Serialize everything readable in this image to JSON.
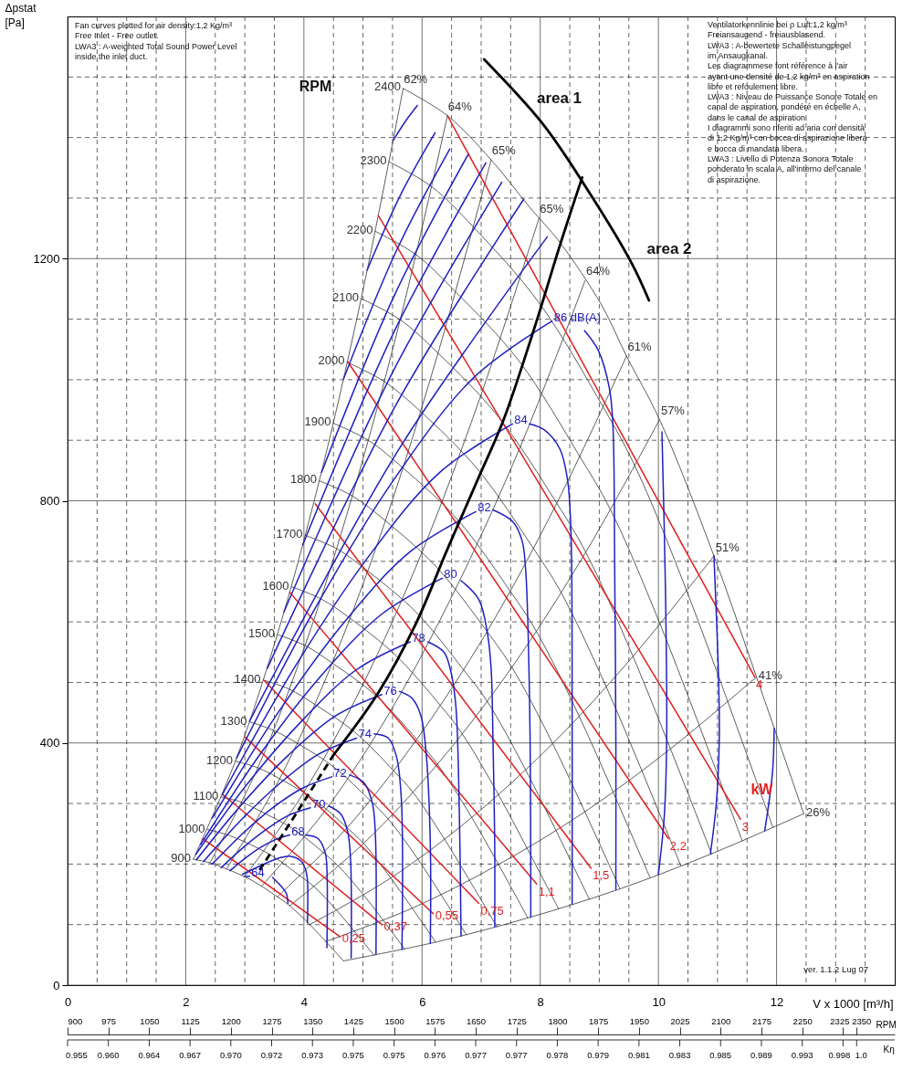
{
  "chart_data": {
    "type": "line",
    "xlim": [
      0,
      14
    ],
    "ylim": [
      0,
      1600
    ],
    "xticks": [
      0,
      {
        "value": 0.5,
        "label": null
      },
      {
        "value": 1,
        "label": null
      },
      {
        "value": 1.5,
        "label": null
      },
      2,
      {
        "value": 2.5,
        "label": null
      },
      {
        "value": 3,
        "label": null
      },
      {
        "value": 3.5,
        "label": null
      },
      4,
      {
        "value": 4.5,
        "label": null
      },
      {
        "value": 5,
        "label": null
      },
      {
        "value": 5.5,
        "label": null
      },
      6,
      {
        "value": 6.5,
        "label": null
      },
      {
        "value": 7,
        "label": null
      },
      {
        "value": 7.5,
        "label": null
      },
      8,
      {
        "value": 8.5,
        "label": null
      },
      {
        "value": 9,
        "label": null
      },
      {
        "value": 9.5,
        "label": null
      },
      10,
      {
        "value": 10.5,
        "label": null
      },
      {
        "value": 11,
        "label": null
      },
      {
        "value": 11.5,
        "label": null
      },
      12,
      {
        "value": 12.5,
        "label": null
      },
      {
        "value": 13,
        "label": null
      },
      {
        "value": 13.5,
        "label": null
      }
    ],
    "yticks": [
      0,
      {
        "value": 100,
        "label": null
      },
      {
        "value": 200,
        "label": null
      },
      {
        "value": 300,
        "label": null
      },
      400,
      {
        "value": 500,
        "label": null
      },
      {
        "value": 600,
        "label": null
      },
      {
        "value": 700,
        "label": null
      },
      800,
      {
        "value": 900,
        "label": null
      },
      {
        "value": 1000,
        "label": null
      },
      {
        "value": 1100,
        "label": null
      },
      1200,
      {
        "value": 1300,
        "label": null
      },
      {
        "value": 1400,
        "label": null
      },
      {
        "value": 1500,
        "label": null
      }
    ],
    "xlabel": "V x 1000 [m³/h]",
    "ylabel": "Δpstat\n[Pa]",
    "x2lim": [
      900,
      2420
    ],
    "x2ticks": [
      900,
      975,
      1050,
      1125,
      1200,
      1275,
      1350,
      1425,
      1500,
      1575,
      1650,
      1725,
      1800,
      1875,
      1950,
      2025,
      2100,
      2175,
      2250,
      2325,
      2350
    ],
    "x2label": "RPM",
    "grid": true,
    "series": [
      {
        "name": "900",
        "color": "#333333",
        "x": [
          4.67,
          4.1,
          3.76,
          3.55,
          3.12,
          2.69,
          2.41,
          2.13
        ],
        "values": [
          40,
          100,
          131,
          146,
          173,
          192,
          202,
          208
        ]
      },
      {
        "name": "1000",
        "color": "#333333",
        "x": [
          5.19,
          4.56,
          4.18,
          3.94,
          3.47,
          2.99,
          2.68,
          2.37
        ],
        "values": [
          49,
          123,
          162,
          180,
          213,
          237,
          249,
          257
        ]
      },
      {
        "name": "1100",
        "color": "#333333",
        "x": [
          5.71,
          5.01,
          4.59,
          4.34,
          3.82,
          3.29,
          2.95,
          2.6
        ],
        "values": [
          59,
          149,
          196,
          218,
          258,
          286,
          302,
          311
        ]
      },
      {
        "name": "1200",
        "color": "#333333",
        "x": [
          6.23,
          5.47,
          5.01,
          4.73,
          4.17,
          3.59,
          3.22,
          2.84
        ],
        "values": [
          71,
          177,
          234,
          260,
          307,
          341,
          359,
          370
        ]
      },
      {
        "name": "1300",
        "color": "#333333",
        "x": [
          6.75,
          5.93,
          5.43,
          5.12,
          4.51,
          3.88,
          3.48,
          3.08
        ],
        "values": [
          83,
          208,
          274,
          305,
          360,
          400,
          421,
          435
        ]
      },
      {
        "name": "1400",
        "color": "#333333",
        "x": [
          7.27,
          6.38,
          5.85,
          5.52,
          4.86,
          4.18,
          3.75,
          3.31
        ],
        "values": [
          96,
          241,
          318,
          354,
          418,
          464,
          489,
          504
        ]
      },
      {
        "name": "1500",
        "color": "#333333",
        "x": [
          7.79,
          6.84,
          6.26,
          5.91,
          5.21,
          4.48,
          4.02,
          3.55
        ],
        "values": [
          111,
          277,
          365,
          406,
          479,
          532,
          561,
          579
        ]
      },
      {
        "name": "1600",
        "color": "#333333",
        "x": [
          8.31,
          7.29,
          6.68,
          6.31,
          5.55,
          4.78,
          4.29,
          3.79
        ],
        "values": [
          126,
          315,
          415,
          462,
          545,
          606,
          638,
          658
        ]
      },
      {
        "name": "1700",
        "color": "#333333",
        "x": [
          8.83,
          7.75,
          7.1,
          6.7,
          5.9,
          5.08,
          4.55,
          4.02
        ],
        "values": [
          142,
          356,
          469,
          521,
          616,
          684,
          721,
          743
        ]
      },
      {
        "name": "1800",
        "color": "#333333",
        "x": [
          9.35,
          8.21,
          7.52,
          7.1,
          6.25,
          5.38,
          4.82,
          4.26
        ],
        "values": [
          159,
          399,
          525,
          584,
          690,
          767,
          808,
          833
        ]
      },
      {
        "name": "1900",
        "color": "#333333",
        "x": [
          9.86,
          8.66,
          7.93,
          7.49,
          6.6,
          5.68,
          5.09,
          4.5
        ],
        "values": [
          177,
          444,
          585,
          651,
          769,
          854,
          900,
          928
        ]
      },
      {
        "name": "2000",
        "color": "#333333",
        "x": [
          10.38,
          9.12,
          8.35,
          7.88,
          6.94,
          5.98,
          5.36,
          4.73
        ],
        "values": [
          197,
          492,
          649,
          722,
          852,
          947,
          997,
          1029
        ]
      },
      {
        "name": "2100",
        "color": "#333333",
        "x": [
          10.9,
          9.57,
          8.77,
          8.28,
          7.29,
          6.27,
          5.63,
          4.97
        ],
        "values": [
          217,
          543,
          715,
          796,
          939,
          1044,
          1099,
          1134
        ]
      },
      {
        "name": "2200",
        "color": "#333333",
        "x": [
          11.42,
          10.03,
          9.19,
          8.67,
          7.64,
          6.57,
          5.89,
          5.21
        ],
        "values": [
          238,
          596,
          785,
          873,
          1031,
          1145,
          1207,
          1245
        ]
      },
      {
        "name": "2300",
        "color": "#333333",
        "x": [
          11.94,
          10.48,
          9.6,
          9.07,
          7.98,
          6.87,
          6.16,
          5.44
        ],
        "values": [
          260,
          651,
          858,
          954,
          1127,
          1252,
          1319,
          1360
        ]
      },
      {
        "name": "2400",
        "color": "#333333",
        "x": [
          12.46,
          11.66,
          10.94,
          10.02,
          9.46,
          9.04,
          8.33,
          7.82,
          7.17,
          6.43,
          5.68
        ],
        "values": [
          283,
          509,
          709,
          934,
          1039,
          1123,
          1227,
          1285,
          1363,
          1436,
          1481
        ]
      },
      {
        "name": "62%",
        "color": "#333333",
        "x": [
          2.13,
          2.84,
          3.55,
          4.26,
          4.97,
          5.68
        ],
        "values": [
          208,
          370,
          579,
          833,
          1134,
          1481
        ]
      },
      {
        "name": "64%",
        "color": "#333333",
        "x": [
          2.41,
          3.22,
          4.02,
          4.82,
          5.63,
          6.43
        ],
        "values": [
          202,
          359,
          561,
          808,
          1099,
          1436
        ]
      },
      {
        "name": "65%",
        "color": "#333333",
        "x": [
          2.69,
          3.59,
          4.48,
          5.38,
          6.27,
          7.17
        ],
        "values": [
          192,
          341,
          532,
          767,
          1044,
          1363
        ]
      },
      {
        "name": "65%",
        "color": "#333333",
        "x": [
          2.99,
          3.99,
          4.99,
          5.99,
          6.98,
          7.98
        ],
        "values": [
          178,
          317,
          495,
          713,
          970,
          1267
        ]
      },
      {
        "name": "64%",
        "color": "#333333",
        "x": [
          3.29,
          4.38,
          5.48,
          6.57,
          7.67,
          8.76
        ],
        "values": [
          164,
          291,
          455,
          655,
          891,
          1164
        ]
      },
      {
        "name": "61%",
        "color": "#333333",
        "x": [
          3.55,
          4.73,
          5.91,
          7.1,
          8.28,
          9.46
        ],
        "values": [
          146,
          260,
          406,
          584,
          796,
          1039
        ]
      },
      {
        "name": "57%",
        "color": "#333333",
        "x": [
          3.76,
          5.01,
          6.26,
          7.52,
          8.77,
          10.02
        ],
        "values": [
          131,
          234,
          365,
          525,
          715,
          934
        ]
      },
      {
        "name": "51%",
        "color": "#333333",
        "x": [
          4.1,
          5.47,
          6.84,
          8.21,
          9.57,
          10.94
        ],
        "values": [
          100,
          177,
          277,
          399,
          543,
          709
        ]
      },
      {
        "name": "41%",
        "color": "#333333",
        "x": [
          4.37,
          5.83,
          7.29,
          8.75,
          10.2,
          11.66
        ],
        "values": [
          72,
          127,
          199,
          286,
          390,
          509
        ]
      },
      {
        "name": "26%",
        "color": "#333333",
        "x": [
          4.67,
          6.23,
          7.79,
          9.35,
          10.9,
          12.46
        ],
        "values": [
          40,
          71,
          111,
          159,
          217,
          283
        ]
      },
      {
        "name": "0,25",
        "color": "#e02020",
        "x": [
          2.29,
          4.61
        ],
        "values": [
          242,
          80
        ]
      },
      {
        "name": "0,37",
        "color": "#e02020",
        "x": [
          2.62,
          5.32
        ],
        "values": [
          315,
          100
        ]
      },
      {
        "name": "0,55",
        "color": "#e02020",
        "x": [
          3.0,
          6.19
        ],
        "values": [
          410,
          118
        ]
      },
      {
        "name": "0,75",
        "color": "#e02020",
        "x": [
          3.33,
          6.96
        ],
        "values": [
          503,
          135
        ]
      },
      {
        "name": "1,1",
        "color": "#e02020",
        "x": [
          3.76,
          7.94
        ],
        "values": [
          649,
          167
        ]
      },
      {
        "name": "1,5",
        "color": "#e02020",
        "x": [
          4.19,
          8.86
        ],
        "values": [
          795,
          193
        ]
      },
      {
        "name": "2,2",
        "color": "#e02020",
        "x": [
          4.74,
          10.17
        ],
        "values": [
          1030,
          242
        ]
      },
      {
        "name": "3",
        "color": "#e02020",
        "x": [
          5.26,
          11.39
        ],
        "values": [
          1271,
          274
        ]
      },
      {
        "name": "4",
        "color": "#e02020",
        "x": [
          6.43,
          11.63
        ],
        "values": [
          1436,
          509
        ]
      },
      {
        "name": "64",
        "color": "#2020c0",
        "x": [
          3.0,
          3.08,
          3.28,
          3.47,
          3.58,
          3.7,
          3.73
        ],
        "values": [
          179,
          180,
          null,
          178,
          167,
          152,
          135
        ]
      },
      {
        "color": "#2020c0",
        "x": [
          2.96,
          3.35,
          3.58,
          3.76,
          3.95,
          4.03,
          4.06,
          4.06
        ],
        "values": [
          183,
          201,
          210,
          213,
          205,
          190,
          173,
          103
        ]
      },
      {
        "name": "68",
        "color": "#2020c0",
        "x": [
          2.75,
          3.0,
          3.26,
          3.51,
          3.76,
          3.9,
          4.03,
          4.24,
          4.36,
          4.39,
          4.39
        ],
        "values": [
          189,
          209,
          227,
          240,
          248,
          null,
          248,
          242,
          219,
          190,
          62
        ]
      },
      {
        "name": "70",
        "color": "#2020c0",
        "x": [
          2.6,
          2.98,
          3.36,
          3.73,
          4.11,
          4.27,
          4.42,
          4.62,
          4.74,
          4.79,
          4.8
        ],
        "values": [
          194,
          228,
          257,
          280,
          293,
          null,
          296,
          283,
          254,
          207,
          45
        ]
      },
      {
        "name": "72",
        "color": "#2020c0",
        "x": [
          2.45,
          2.96,
          3.46,
          3.97,
          4.47,
          4.62,
          4.77,
          5.01,
          5.16,
          5.21,
          5.22
        ],
        "values": [
          200,
          250,
          292,
          325,
          344,
          null,
          347,
          335,
          300,
          248,
          51
        ]
      },
      {
        "name": "74",
        "color": "#2020c0",
        "x": [
          2.3,
          2.95,
          3.6,
          4.24,
          4.89,
          5.04,
          5.19,
          5.43,
          5.57,
          5.65,
          5.66
        ],
        "values": [
          204,
          274,
          334,
          381,
          408,
          null,
          415,
          408,
          376,
          306,
          59
        ]
      },
      {
        "name": "76",
        "color": "#2020c0",
        "x": [
          2.18,
          2.97,
          3.75,
          4.54,
          5.32,
          5.47,
          5.62,
          5.83,
          5.98,
          6.07,
          6.14,
          6.14
        ],
        "values": [
          207,
          301,
          381,
          445,
          480,
          null,
          485,
          474,
          445,
          382,
          231,
          69
        ]
      },
      {
        "name": "78",
        "color": "#2020c0",
        "x": [
          2.17,
          3.08,
          3.99,
          4.89,
          5.8,
          5.95,
          6.1,
          6.37,
          6.48,
          6.57,
          6.63,
          6.66
        ],
        "values": [
          216,
          337,
          439,
          521,
          567,
          null,
          567,
          550,
          521,
          463,
          289,
          81
        ]
      },
      {
        "name": "80",
        "color": "#2020c0",
        "x": [
          2.25,
          3.27,
          4.3,
          5.32,
          6.34,
          6.5,
          6.66,
          6.96,
          7.11,
          7.17,
          7.2,
          7.23,
          7.23
        ],
        "values": [
          232,
          383,
          512,
          613,
          672,
          null,
          668,
          637,
          579,
          521,
          405,
          231,
          96
        ]
      },
      {
        "name": "82",
        "color": "#2020c0",
        "x": [
          2.45,
          3.57,
          4.68,
          5.8,
          6.91,
          7.05,
          7.2,
          7.53,
          7.69,
          7.75,
          7.82,
          7.84
        ],
        "values": [
          276,
          451,
          599,
          716,
          782,
          null,
          785,
          766,
          735,
          691,
          466,
          112
        ]
      },
      {
        "name": "84",
        "color": "#2020c0",
        "x": [
          2.62,
          3.85,
          5.08,
          6.3,
          7.53,
          7.67,
          7.82,
          8.07,
          8.33,
          8.46,
          8.52,
          8.54,
          8.54
        ],
        "values": [
          315,
          526,
          706,
          847,
          927,
          null,
          927,
          917,
          886,
          836,
          748,
          450,
          134
        ]
      },
      {
        "name": "86 dB(A)",
        "color": "#2020c0",
        "x": [
          2.86,
          4.2,
          5.53,
          6.87,
          8.2,
          8.48,
          8.75,
          8.98,
          9.17,
          9.23,
          9.26,
          9.28,
          9.28
        ],
        "values": [
          375,
          624,
          836,
          1003,
          1097,
          null,
          1081,
          1049,
          986,
          924,
          691,
          400,
          158
        ]
      },
      {
        "color": "#2020c0",
        "x": [
          3.08,
          5.6,
          8.12
        ],
        "values": [
          436,
          884,
          1236
        ]
      },
      {
        "color": "#2020c0",
        "x": [
          10.06,
          10.12,
          10.14,
          10.1,
          10.0
        ],
        "values": [
          914,
          650,
          405,
          280,
          183
        ]
      },
      {
        "color": "#2020c0",
        "x": [
          3.38,
          5.55,
          7.72
        ],
        "values": [
          523,
          957,
          1298
        ]
      },
      {
        "color": "#2020c0",
        "x": [
          10.94,
          11.02,
          11.03,
          10.98,
          10.88
        ],
        "values": [
          709,
          500,
          405,
          300,
          217
        ]
      },
      {
        "color": "#2020c0",
        "x": [
          3.66,
          5.51,
          7.35
        ],
        "values": [
          616,
          1014,
          1326
        ]
      },
      {
        "color": "#2020c0",
        "x": [
          11.96,
          11.93,
          11.8
        ],
        "values": [
          424,
          350,
          255
        ]
      },
      {
        "color": "#2020c0",
        "x": [
          3.98,
          5.53,
          7.08
        ],
        "values": [
          727,
          1080,
          1358
        ]
      },
      {
        "color": "#2020c0",
        "x": [
          4.3,
          5.54,
          6.78
        ],
        "values": [
          847,
          1141,
          1372
        ]
      },
      {
        "color": "#2020c0",
        "x": [
          4.67,
          5.57,
          6.47
        ],
        "values": [
          1001,
          1214,
          1381
        ]
      },
      {
        "color": "#2020c0",
        "x": [
          5.07,
          5.65,
          6.22
        ],
        "values": [
          1181,
          1308,
          1408
        ]
      },
      {
        "color": "#2020c0",
        "x": [
          5.51,
          5.72,
          5.92
        ],
        "values": [
          1395,
          1427,
          1453
        ]
      },
      {
        "color": "#000000",
        "x": [
          4.5,
          5.24,
          5.89,
          6.42,
          6.96,
          7.38,
          7.91,
          8.33,
          8.71
        ],
        "values": [
          380,
          480,
          596,
          718,
          839,
          934,
          1088,
          1221,
          1334
        ]
      },
      {
        "color": "#000000",
        "line_style": "dashed",
        "x": [
          3.25,
          3.9,
          4.5
        ],
        "values": [
          190,
          288,
          380
        ]
      },
      {
        "color": "#000000",
        "x": [
          7.05,
          8.03,
          8.74,
          9.55,
          9.84
        ],
        "values": [
          1529,
          1424,
          1323,
          1192,
          1131
        ]
      }
    ],
    "annotations": [
      "Fan curves plotted for air density:1,2 Kg/m³\nFree Inlet - Free outlet.\nLWA3 : A-weighted Total Sound Power Level\ninside the inlet duct.",
      "Ventilatorkennlinie bei ρ Luft:1,2 kg/m³\nFreiansaugend - freiausblasend.\nLWA3 : A-bewertete Schalleistungpegel\nim Ansaugkanal.\n\nLes diagrammese font référence à l'air\nayant une densité de 1,2 kg/m³ en aspiration\nlibre et refoulement libre.\nLWA3 : Niveau de Puissance Sonore Totale en\ncanal de aspiration, pondéré en échelle A,\ndans le canal de aspiration.\n\nI diagrammi sono riferiti ad aria con densità\ndi 1,2 Kg/m³ con bocca di aspirazione libera\ne bocca di mandata libera.\nLWA3 : Livello di Potenza Sonora Totale\nponderato in scala A, all'interno del canale\ndi aspirazione.",
      "ver. 1.1.2 Lug 07",
      "RPM",
      "area 1",
      "area 2",
      {
        "text": "kW",
        "x": 11.75,
        "y": 323
      },
      "0.955",
      "0.960",
      "0.964",
      "0.967",
      "0.970",
      "0.972",
      "0.973",
      "0.975",
      "0.975",
      "0.976",
      "0.977",
      "0.977",
      "0.978",
      "0.979",
      "0.981",
      "0.983",
      "0.985",
      "0.989",
      "0.993",
      "0.998",
      "1.0",
      "Kη"
    ]
  }
}
